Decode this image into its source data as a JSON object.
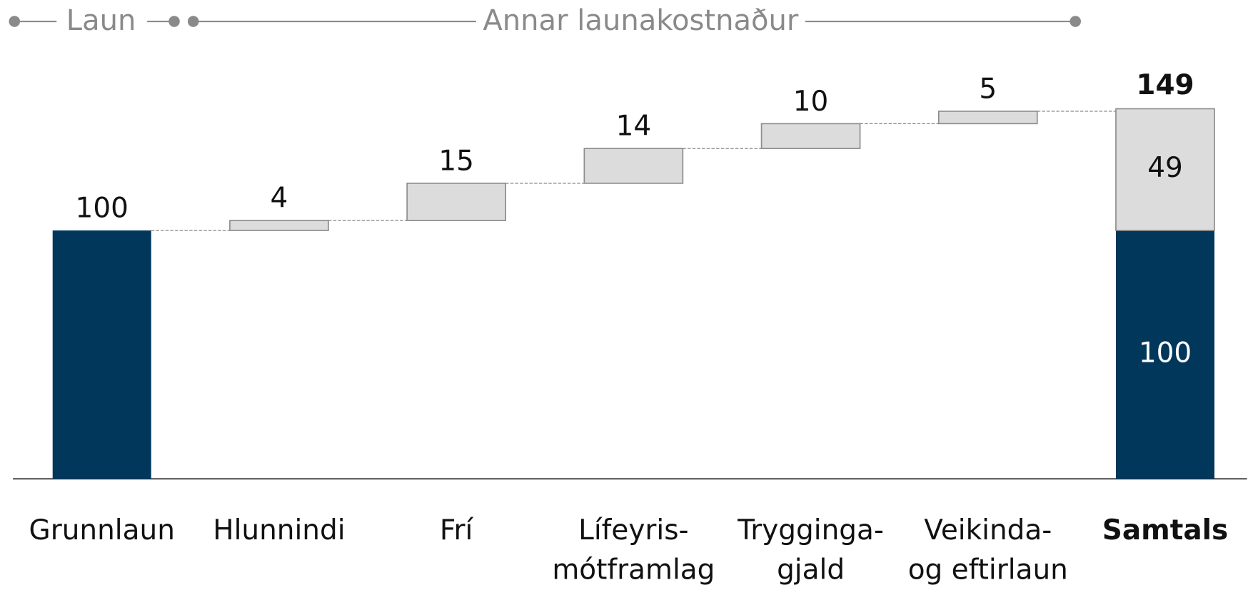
{
  "chart_data": {
    "type": "waterfall",
    "brackets": [
      {
        "label": "Laun"
      },
      {
        "label": "Annar launakostnaður"
      }
    ],
    "categories": [
      "Grunnlaun",
      "Hlunnindi",
      "Frí",
      "Lífeyris-\nmótframlag",
      "Trygginga-\ngjald",
      "Veikinda-\nog eftirlaun",
      "Samtals"
    ],
    "values": [
      100,
      4,
      15,
      14,
      10,
      5,
      149
    ],
    "total_segments": [
      100,
      49
    ],
    "colors": {
      "base": "#02375c",
      "step": "#dcdcdc"
    },
    "ylim": [
      0,
      180
    ]
  }
}
